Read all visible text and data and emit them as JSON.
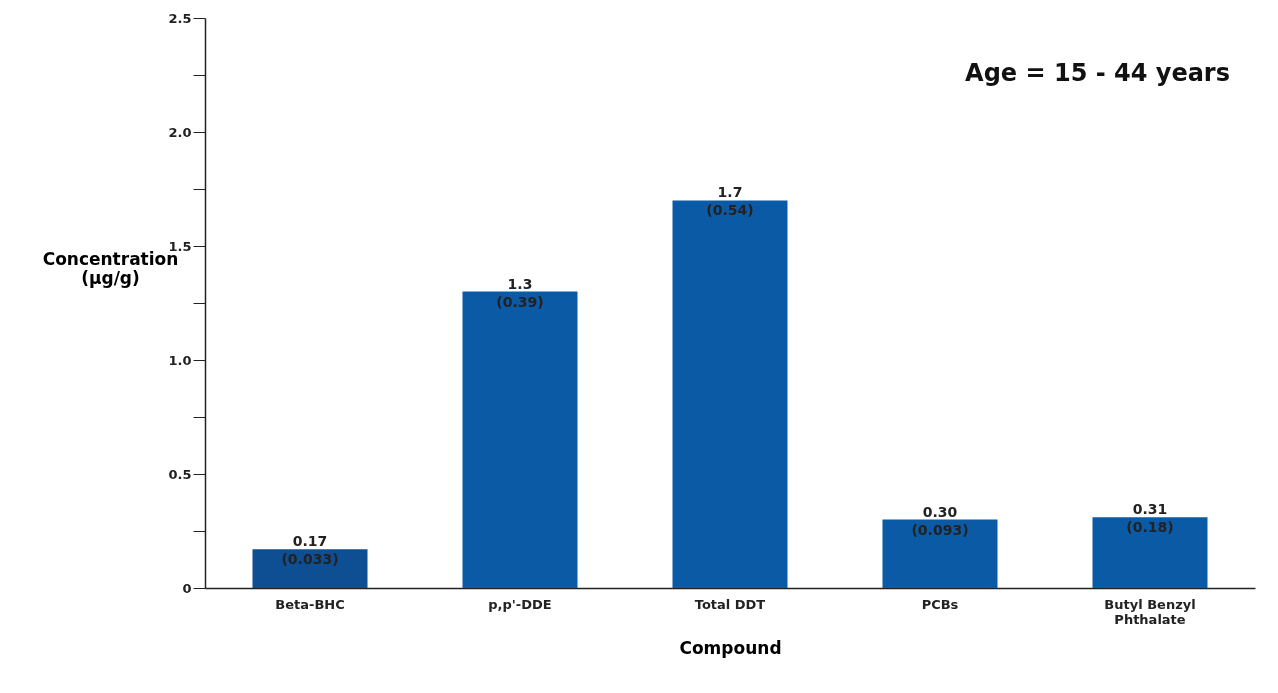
{
  "chart_data": {
    "type": "bar",
    "xlabel": "Compound",
    "ylabel": "Concentration (µg/g)",
    "categories": [
      "Beta-BHC",
      "p,p'-DDE",
      "Total DDT",
      "PCBs",
      "Butyl Benzyl Phthalate"
    ],
    "values": [
      0.17,
      1.3,
      1.7,
      0.3,
      0.31
    ],
    "value_labels": [
      "0.17 (0.033)",
      "1.3 (0.39)",
      "1.7 (0.54)",
      "0.30 (0.093)",
      "0.31 (0.18)"
    ],
    "colors": [
      "#0d4f92",
      "#0b5aa6",
      "#0b5aa6",
      "#0b5aa6",
      "#0b5aa6"
    ],
    "ylim": [
      0,
      2.5
    ],
    "yticks": [
      0,
      {
        "value": 0.25,
        "label": null
      },
      {
        "value": 0.5,
        "label": "0.5"
      },
      {
        "value": 0.75,
        "label": null
      },
      {
        "value": 1,
        "label": "1.0"
      },
      {
        "value": 1.25,
        "label": null
      },
      {
        "value": 1.5,
        "label": "1.5"
      },
      {
        "value": 1.75,
        "label": null
      },
      {
        "value": 2,
        "label": "2.0"
      },
      {
        "value": 2.25,
        "label": null
      },
      {
        "value": 2.5,
        "label": "2.5"
      }
    ],
    "annotations": [
      "Age = 15 - 44 years"
    ],
    "grid": false
  }
}
